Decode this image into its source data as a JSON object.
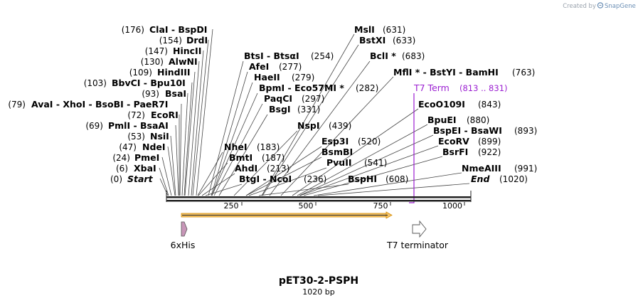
{
  "credit": {
    "prefix": "Created by",
    "brand": "SnapGene"
  },
  "map": {
    "title": "pET30-2-PSPH",
    "subtitle": "1020 bp",
    "length": 1020,
    "ticks": [
      "250",
      "500",
      "750",
      "1000"
    ],
    "features": [
      {
        "name": "6xHis",
        "shape": "pink-arrow"
      },
      {
        "name": "T7 terminator",
        "shape": "white-arrow"
      }
    ],
    "t7": {
      "name": "T7 Term",
      "range": "(813 .. 831)",
      "start": 813,
      "end": 831
    },
    "orf": {
      "start": 49,
      "end": 777,
      "color": "#f5a623"
    }
  },
  "sites": [
    {
      "pos": "(0)",
      "name": "Start",
      "italic": true
    },
    {
      "pos": "(6)",
      "name": "XbaI"
    },
    {
      "pos": "(24)",
      "name": "PmeI"
    },
    {
      "pos": "(47)",
      "name": "NdeI"
    },
    {
      "pos": "(53)",
      "name": "NsiI"
    },
    {
      "pos": "(69)",
      "name": "PmlI  -  BsaAI"
    },
    {
      "pos": "(72)",
      "name": "EcoRI"
    },
    {
      "pos": "(79)",
      "name": "AvaI   -  XhoI   -  BsoBI   -  PaeR7I"
    },
    {
      "pos": "(93)",
      "name": "BsaI"
    },
    {
      "pos": "(103)",
      "name": "BbvCI   -  Bpu10I"
    },
    {
      "pos": "(109)",
      "name": "HindIII"
    },
    {
      "pos": "(130)",
      "name": "AlwNI"
    },
    {
      "pos": "(147)",
      "name": "HincII"
    },
    {
      "pos": "(154)",
      "name": "DrdI"
    },
    {
      "pos": "(176)",
      "name": "ClaI   -  BspDI"
    },
    {
      "pos": "(183)",
      "name": "NheI"
    },
    {
      "pos": "(187)",
      "name": "BmtI"
    },
    {
      "pos": "(213)",
      "name": "AhdI"
    },
    {
      "pos": "(236)",
      "name": "BtgI   -  NcoI"
    },
    {
      "pos": "(254)",
      "name": "BtsI   -  BtsαI"
    },
    {
      "pos": "(277)",
      "name": "AfeI"
    },
    {
      "pos": "(279)",
      "name": "HaeII"
    },
    {
      "pos": "(282)",
      "name": "BpmI   -  Eco57MI *"
    },
    {
      "pos": "(297)",
      "name": "PaqCI"
    },
    {
      "pos": "(331)",
      "name": "BsgI"
    },
    {
      "pos": "(439)",
      "name": "NspI"
    },
    {
      "pos": "(520)",
      "name": "Esp3I"
    },
    {
      "pos": "(520)",
      "name": "BsmBI"
    },
    {
      "pos": "(541)",
      "name": "PvuII"
    },
    {
      "pos": "(608)",
      "name": "BspHI"
    },
    {
      "pos": "(631)",
      "name": "MslI"
    },
    {
      "pos": "(633)",
      "name": "BstXI"
    },
    {
      "pos": "(683)",
      "name": "BclI *"
    },
    {
      "pos": "(763)",
      "name": "MflI *  -  BstYI   -  BamHI"
    },
    {
      "pos": "(843)",
      "name": "EcoO109I"
    },
    {
      "pos": "(880)",
      "name": "BpuEI"
    },
    {
      "pos": "(893)",
      "name": "BspEI   -  BsaWI"
    },
    {
      "pos": "(899)",
      "name": "EcoRV"
    },
    {
      "pos": "(922)",
      "name": "BsrFI"
    },
    {
      "pos": "(991)",
      "name": "NmeAIII"
    },
    {
      "pos": "(1020)",
      "name": "End",
      "italic": true
    }
  ]
}
